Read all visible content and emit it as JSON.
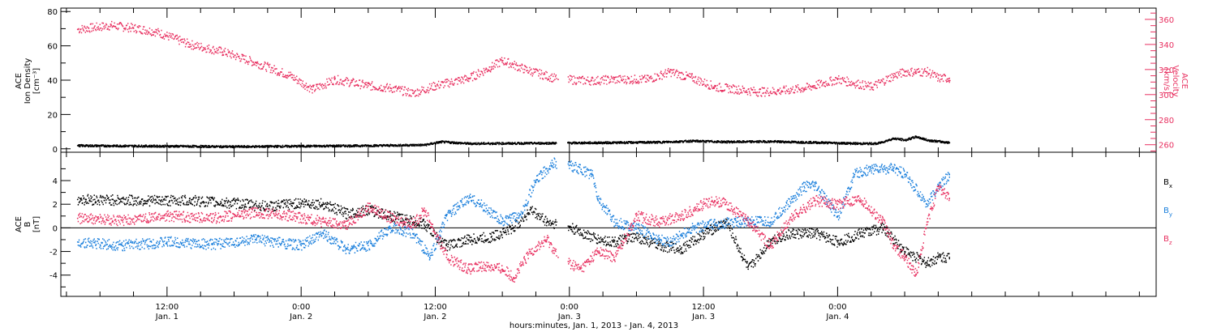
{
  "chart_data": [
    {
      "type": "scatter",
      "panel": "top",
      "left_axis": {
        "label_lines": [
          "ACE",
          "Ion Density",
          "[cm⁻³]"
        ],
        "ylim": [
          -2,
          82
        ],
        "ticks": [
          "0",
          "20",
          "40",
          "60",
          "80"
        ],
        "color": "#000000"
      },
      "right_axis": {
        "label_lines": [
          "ACE",
          "Velocity",
          "[km/s]"
        ],
        "ylim": [
          254,
          369
        ],
        "ticks": [
          "260",
          "280",
          "300",
          "320",
          "340",
          "360"
        ],
        "color": "#e83060"
      },
      "series": [
        {
          "axis": "left",
          "color": "#000000",
          "x": [
            -2.0,
            6.0,
            12.0,
            18.0,
            24.0,
            29.0,
            30.5,
            33.0,
            39.0,
            45.0,
            50.0,
            53.0,
            56.0,
            60.0,
            65.0,
            68.0,
            69.5,
            71.0,
            72.0,
            73.0,
            74.0,
            76.0
          ],
          "y": [
            1.8,
            1.5,
            1.2,
            1.5,
            1.8,
            2.2,
            4.0,
            3.0,
            3.2,
            3.5,
            3.8,
            4.5,
            4.0,
            4.2,
            3.5,
            3.0,
            3.0,
            6.0,
            5.0,
            7.0,
            5.0,
            3.5
          ]
        },
        {
          "axis": "right",
          "color": "#e83060",
          "x": [
            -2.0,
            1.0,
            3.0,
            5.0,
            8.0,
            11.0,
            14.0,
            17.0,
            19.0,
            21.0,
            24.0,
            26.0,
            28.0,
            30.0,
            33.0,
            35.0,
            36.0,
            38.0,
            41.0,
            44.0,
            46.0,
            48.0,
            49.0,
            51.0,
            53.0,
            55.0,
            57.0,
            59.0,
            61.0,
            63.0,
            66.0,
            69.0,
            71.0,
            72.0,
            73.0,
            74.0,
            75.0,
            76.0
          ],
          "y": [
            352.0,
            355.0,
            353.0,
            350.0,
            340.0,
            334.0,
            325.0,
            315.0,
            304.0,
            312.0,
            307.0,
            305.0,
            301.0,
            307.0,
            313.0,
            322.0,
            327.0,
            320.0,
            312.0,
            311.0,
            312.0,
            312.0,
            312.0,
            318.0,
            313.0,
            306.0,
            304.0,
            302.0,
            303.0,
            305.0,
            312.0,
            306.0,
            315.0,
            318.0,
            318.0,
            318.0,
            313.0,
            313.0
          ]
        }
      ]
    },
    {
      "type": "scatter",
      "panel": "bottom",
      "left_axis": {
        "label_lines": [
          "ACE",
          "B",
          "[nT]"
        ],
        "ylim": [
          -5.8,
          6.4
        ],
        "ticks": [
          "-4",
          "-2",
          "0",
          "2",
          "4"
        ]
      },
      "zero_line": true,
      "legend_position": "right",
      "series": [
        {
          "name": "Bx",
          "color": "#000000",
          "x": [
            -2.0,
            4.0,
            8.0,
            13.0,
            15.0,
            18.0,
            20.0,
            22.0,
            24.0,
            26.0,
            29.0,
            30.5,
            31.0,
            33.0,
            35.0,
            37.0,
            38.5,
            40.0,
            42.0,
            44.5,
            46.0,
            48.0,
            50.0,
            52.0,
            54.0,
            56.0,
            57.5,
            58.0,
            60.0,
            62.0,
            64.0,
            66.0,
            68.0,
            70.0,
            72.0,
            74.0,
            75.0,
            76.0
          ],
          "y": [
            2.4,
            2.3,
            2.3,
            2.0,
            1.8,
            2.1,
            2.0,
            1.2,
            1.5,
            1.0,
            0.3,
            -1.2,
            -1.5,
            -1.0,
            -0.8,
            0.0,
            1.5,
            0.5,
            0.0,
            -1.0,
            -1.2,
            -0.8,
            -1.5,
            -1.8,
            -0.5,
            0.5,
            -2.5,
            -3.5,
            -1.0,
            -0.5,
            -0.5,
            -1.2,
            -0.5,
            0.0,
            -2.0,
            -3.0,
            -2.5,
            -2.5
          ]
        },
        {
          "name": "By",
          "color": "#1a7fdc",
          "x": [
            -2.0,
            2.0,
            6.0,
            10.0,
            14.0,
            18.0,
            20.0,
            22.0,
            24.0,
            26.0,
            28.0,
            29.5,
            31.0,
            33.0,
            34.0,
            36.0,
            37.5,
            39.0,
            40.5,
            42.0,
            44.0,
            44.5,
            46.0,
            48.0,
            50.0,
            51.0,
            53.0,
            55.0,
            57.0,
            60.0,
            62.0,
            63.0,
            64.0,
            66.0,
            67.5,
            69.0,
            71.0,
            72.0,
            74.0,
            75.0,
            76.0
          ],
          "y": [
            -1.2,
            -1.5,
            -1.2,
            -1.4,
            -1.0,
            -1.5,
            -0.5,
            -1.8,
            -1.5,
            0.0,
            -0.5,
            -2.5,
            1.0,
            2.5,
            2.0,
            0.5,
            1.0,
            4.0,
            5.5,
            5.3,
            4.5,
            2.5,
            0.5,
            0.0,
            -1.0,
            -1.2,
            0.0,
            0.3,
            0.5,
            0.5,
            2.5,
            3.5,
            3.5,
            1.0,
            4.5,
            5.0,
            5.0,
            4.5,
            2.0,
            3.5,
            4.5
          ]
        },
        {
          "name": "Bz",
          "color": "#e83060",
          "x": [
            -2.0,
            2.0,
            6.0,
            10.0,
            14.0,
            17.0,
            20.0,
            22.0,
            24.0,
            26.0,
            28.0,
            29.0,
            31.0,
            33.0,
            34.5,
            36.0,
            37.0,
            38.5,
            40.0,
            41.0,
            43.0,
            44.5,
            46.0,
            48.0,
            50.0,
            52.0,
            54.0,
            55.0,
            56.0,
            58.0,
            60.0,
            62.0,
            64.0,
            66.0,
            68.0,
            70.0,
            71.0,
            72.0,
            73.0,
            74.0,
            75.0,
            76.0
          ],
          "y": [
            0.8,
            0.6,
            1.0,
            0.8,
            1.3,
            1.0,
            0.5,
            0.2,
            1.8,
            0.8,
            0.3,
            1.5,
            -2.5,
            -3.5,
            -3.2,
            -3.5,
            -4.2,
            -2.0,
            -1.0,
            -2.5,
            -3.5,
            -2.0,
            -2.5,
            1.0,
            0.5,
            1.0,
            2.0,
            2.3,
            2.0,
            0.5,
            -1.5,
            1.0,
            2.3,
            2.0,
            2.5,
            0.5,
            -1.5,
            -2.5,
            -4.0,
            0.5,
            3.5,
            2.5
          ]
        }
      ]
    }
  ],
  "x_axis": {
    "xlim": [
      -3.5,
      94.5
    ],
    "major_ticks": [
      {
        "x": 6,
        "time": "12:00",
        "day": "Jan. 1"
      },
      {
        "x": 18,
        "time": "0:00",
        "day": "Jan. 2"
      },
      {
        "x": 30,
        "time": "12:00",
        "day": "Jan. 2"
      },
      {
        "x": 42,
        "time": "0:00",
        "day": "Jan. 3"
      },
      {
        "x": 54,
        "time": "12:00",
        "day": "Jan. 3"
      },
      {
        "x": 66,
        "time": "0:00",
        "day": "Jan. 4"
      }
    ],
    "title": "hours:minutes, Jan.  1, 2013 - Jan.  4, 2013"
  },
  "legend": [
    {
      "name": "Bx",
      "base": "B",
      "sub": "x",
      "color": "#000000"
    },
    {
      "name": "By",
      "base": "B",
      "sub": "y",
      "color": "#1a7fdc"
    },
    {
      "name": "Bz",
      "base": "B",
      "sub": "z",
      "color": "#e83060"
    }
  ]
}
